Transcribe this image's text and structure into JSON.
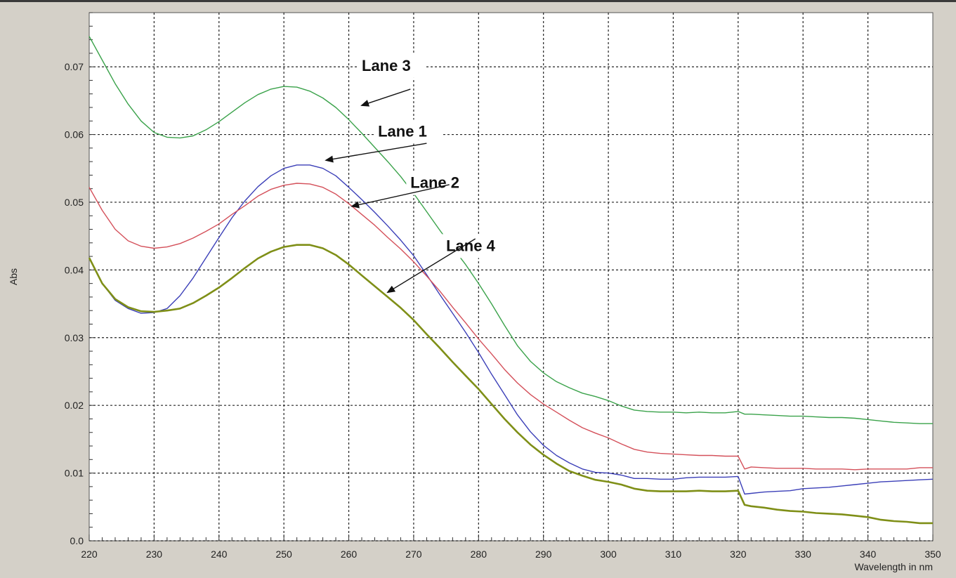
{
  "chart_data": {
    "type": "line",
    "title": "",
    "xlabel": "Wavelength in nm",
    "ylabel": "Abs",
    "xlim": [
      220,
      350
    ],
    "ylim": [
      0.0,
      0.078
    ],
    "xticks": [
      220,
      230,
      240,
      250,
      260,
      270,
      280,
      290,
      300,
      310,
      320,
      330,
      340,
      350
    ],
    "yticks": [
      "0.0",
      "0.01",
      "0.02",
      "0.03",
      "0.04",
      "0.05",
      "0.06",
      "0.07"
    ],
    "yticks_values": [
      0.0,
      0.01,
      0.02,
      0.03,
      0.04,
      0.05,
      0.06,
      0.07
    ],
    "grid": true,
    "series": [
      {
        "name": "Lane 3",
        "color": "#3aa24a",
        "x": [
          220,
          222,
          224,
          226,
          228,
          230,
          232,
          234,
          236,
          238,
          240,
          242,
          244,
          246,
          248,
          250,
          252,
          254,
          256,
          258,
          260,
          262,
          264,
          266,
          268,
          270,
          272,
          274,
          276,
          278,
          280,
          282,
          284,
          286,
          288,
          290,
          292,
          294,
          296,
          298,
          300,
          302,
          304,
          306,
          308,
          310,
          312,
          314,
          316,
          318,
          320,
          321,
          322,
          324,
          326,
          328,
          330,
          332,
          334,
          336,
          338,
          340,
          342,
          344,
          346,
          348,
          350
        ],
        "y": [
          0.0745,
          0.071,
          0.0675,
          0.0645,
          0.062,
          0.0603,
          0.0596,
          0.0595,
          0.0598,
          0.0607,
          0.0619,
          0.0633,
          0.0647,
          0.0659,
          0.0667,
          0.0671,
          0.067,
          0.0664,
          0.0654,
          0.064,
          0.0622,
          0.0602,
          0.0581,
          0.056,
          0.0538,
          0.0513,
          0.0486,
          0.0459,
          0.0433,
          0.0408,
          0.038,
          0.035,
          0.0318,
          0.0288,
          0.0265,
          0.0248,
          0.0235,
          0.0226,
          0.0218,
          0.0213,
          0.0207,
          0.0199,
          0.0193,
          0.0191,
          0.019,
          0.019,
          0.0189,
          0.019,
          0.0189,
          0.0189,
          0.0191,
          0.0187,
          0.0187,
          0.0186,
          0.0185,
          0.0184,
          0.0184,
          0.0183,
          0.0182,
          0.0182,
          0.0181,
          0.0179,
          0.0177,
          0.0175,
          0.0174,
          0.0173,
          0.0173
        ]
      },
      {
        "name": "Lane 1",
        "color": "#3b3fb8",
        "x": [
          220,
          222,
          224,
          226,
          228,
          230,
          232,
          234,
          236,
          238,
          240,
          242,
          244,
          246,
          248,
          250,
          252,
          254,
          256,
          258,
          260,
          262,
          264,
          266,
          268,
          270,
          272,
          274,
          276,
          278,
          280,
          282,
          284,
          286,
          288,
          290,
          292,
          294,
          296,
          298,
          300,
          302,
          304,
          306,
          308,
          310,
          312,
          314,
          316,
          318,
          320,
          321,
          322,
          324,
          326,
          328,
          330,
          332,
          334,
          336,
          338,
          340,
          342,
          344,
          346,
          348,
          350
        ],
        "y": [
          0.0418,
          0.038,
          0.0355,
          0.0343,
          0.0336,
          0.0337,
          0.0343,
          0.0362,
          0.0388,
          0.0418,
          0.0448,
          0.0477,
          0.0502,
          0.0523,
          0.0539,
          0.055,
          0.0555,
          0.0555,
          0.055,
          0.0539,
          0.0522,
          0.0504,
          0.0485,
          0.0465,
          0.0444,
          0.0421,
          0.0393,
          0.0364,
          0.0336,
          0.0308,
          0.0278,
          0.0246,
          0.0216,
          0.0186,
          0.0161,
          0.0141,
          0.0126,
          0.0115,
          0.0106,
          0.0101,
          0.01,
          0.0097,
          0.0092,
          0.0092,
          0.0091,
          0.0091,
          0.0093,
          0.0094,
          0.0094,
          0.0094,
          0.0095,
          0.0069,
          0.007,
          0.0072,
          0.0073,
          0.0074,
          0.0077,
          0.0078,
          0.0079,
          0.0081,
          0.0083,
          0.0085,
          0.0087,
          0.0088,
          0.0089,
          0.009,
          0.0091
        ]
      },
      {
        "name": "Lane 2",
        "color": "#d4505a",
        "x": [
          220,
          222,
          224,
          226,
          228,
          230,
          232,
          234,
          236,
          238,
          240,
          242,
          244,
          246,
          248,
          250,
          252,
          254,
          256,
          258,
          260,
          262,
          264,
          266,
          268,
          270,
          272,
          274,
          276,
          278,
          280,
          282,
          284,
          286,
          288,
          290,
          292,
          294,
          296,
          298,
          300,
          302,
          304,
          306,
          308,
          310,
          312,
          314,
          316,
          318,
          320,
          321,
          322,
          324,
          326,
          328,
          330,
          332,
          334,
          336,
          338,
          340,
          342,
          344,
          346,
          348,
          350
        ],
        "y": [
          0.0522,
          0.0488,
          0.046,
          0.0443,
          0.0435,
          0.0432,
          0.0434,
          0.0439,
          0.0447,
          0.0457,
          0.0468,
          0.0482,
          0.0495,
          0.0509,
          0.0519,
          0.0525,
          0.0528,
          0.0527,
          0.0522,
          0.0512,
          0.0498,
          0.0482,
          0.0466,
          0.0448,
          0.0431,
          0.0412,
          0.0391,
          0.0369,
          0.0345,
          0.0322,
          0.0298,
          0.0276,
          0.0253,
          0.0233,
          0.0216,
          0.0202,
          0.019,
          0.0178,
          0.0167,
          0.0159,
          0.0152,
          0.0143,
          0.0135,
          0.0131,
          0.0129,
          0.0128,
          0.0127,
          0.0126,
          0.0126,
          0.0125,
          0.0125,
          0.0106,
          0.0109,
          0.0108,
          0.0107,
          0.0107,
          0.0107,
          0.0106,
          0.0106,
          0.0106,
          0.0105,
          0.0106,
          0.0106,
          0.0106,
          0.0106,
          0.0108,
          0.0108
        ]
      },
      {
        "name": "Lane 4",
        "color": "#7f8f17",
        "x": [
          220,
          222,
          224,
          226,
          228,
          230,
          232,
          234,
          236,
          238,
          240,
          242,
          244,
          246,
          248,
          250,
          252,
          254,
          256,
          258,
          260,
          262,
          264,
          266,
          268,
          270,
          272,
          274,
          276,
          278,
          280,
          282,
          284,
          286,
          288,
          290,
          292,
          294,
          296,
          298,
          300,
          302,
          304,
          306,
          308,
          310,
          312,
          314,
          316,
          318,
          320,
          321,
          322,
          324,
          326,
          328,
          330,
          332,
          334,
          336,
          338,
          340,
          342,
          344,
          346,
          348,
          350
        ],
        "y": [
          0.0418,
          0.038,
          0.0357,
          0.0345,
          0.0339,
          0.0338,
          0.034,
          0.0343,
          0.0351,
          0.0362,
          0.0374,
          0.0388,
          0.0403,
          0.0417,
          0.0427,
          0.0434,
          0.0437,
          0.0437,
          0.0432,
          0.0422,
          0.0408,
          0.0392,
          0.0376,
          0.036,
          0.0344,
          0.0326,
          0.0305,
          0.0285,
          0.0264,
          0.0244,
          0.0224,
          0.0202,
          0.018,
          0.016,
          0.0142,
          0.0127,
          0.0114,
          0.0103,
          0.0096,
          0.009,
          0.0087,
          0.0083,
          0.0077,
          0.0074,
          0.0073,
          0.0073,
          0.0073,
          0.0074,
          0.0073,
          0.0073,
          0.0074,
          0.0053,
          0.0051,
          0.0049,
          0.0046,
          0.0044,
          0.0043,
          0.0041,
          0.004,
          0.0039,
          0.0037,
          0.0035,
          0.0031,
          0.0029,
          0.0028,
          0.0026,
          0.0026
        ]
      }
    ],
    "annotations": [
      {
        "text": "Lane 3",
        "series": "Lane 3",
        "label_anchor": [
          262,
          0.0694
        ],
        "arrow_from": [
          269.5,
          0.0667
        ],
        "arrow_to": [
          262,
          0.0643
        ]
      },
      {
        "text": "Lane 1",
        "series": "Lane 1",
        "label_anchor": [
          264.5,
          0.0597
        ],
        "arrow_from": [
          272,
          0.0587
        ],
        "arrow_to": [
          256.5,
          0.0562
        ]
      },
      {
        "text": "Lane 2",
        "series": "Lane 2",
        "label_anchor": [
          269.5,
          0.0521
        ],
        "arrow_from": [
          275.5,
          0.0526
        ],
        "arrow_to": [
          260.5,
          0.0494
        ]
      },
      {
        "text": "Lane 4",
        "series": "Lane 4",
        "label_anchor": [
          275,
          0.0428
        ],
        "arrow_from": [
          279.5,
          0.0446
        ],
        "arrow_to": [
          266,
          0.0367
        ]
      }
    ]
  }
}
